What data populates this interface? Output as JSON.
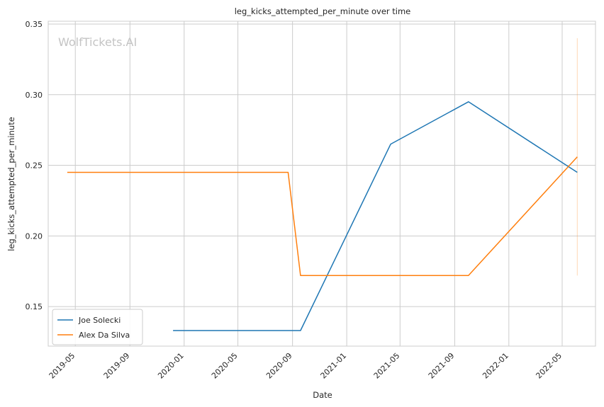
{
  "chart_data": {
    "type": "line",
    "title": "leg_kicks_attempted_per_minute over time",
    "xlabel": "Date",
    "ylabel": "leg_kicks_attempted_per_minute",
    "watermark": "WolfTickets.AI",
    "xlim": [
      "2019-03-01",
      "2022-07-15"
    ],
    "ylim": [
      0.122,
      0.352
    ],
    "x_ticks": [
      "2019-05-01",
      "2019-09-01",
      "2020-01-01",
      "2020-05-01",
      "2020-09-01",
      "2021-01-01",
      "2021-05-01",
      "2021-09-01",
      "2022-01-01",
      "2022-05-01"
    ],
    "x_tick_labels": [
      "2019-05",
      "2019-09",
      "2020-01",
      "2020-05",
      "2020-09",
      "2021-01",
      "2021-05",
      "2021-09",
      "2022-01",
      "2022-05"
    ],
    "y_ticks": [
      0.15,
      0.2,
      0.25,
      0.3,
      0.35
    ],
    "y_tick_labels": [
      "0.15",
      "0.20",
      "0.25",
      "0.30",
      "0.35"
    ],
    "grid": true,
    "legend_position": "lower-left",
    "series": [
      {
        "name": "Joe Solecki",
        "color": "#1f77b4",
        "points": [
          {
            "x": "2019-12-07",
            "y": 0.133
          },
          {
            "x": "2020-09-19",
            "y": 0.133
          },
          {
            "x": "2021-04-10",
            "y": 0.265
          },
          {
            "x": "2021-10-02",
            "y": 0.295
          },
          {
            "x": "2022-06-04",
            "y": 0.245
          }
        ]
      },
      {
        "name": "Alex Da Silva",
        "color": "#ff7f0e",
        "points": [
          {
            "x": "2019-04-13",
            "y": 0.245
          },
          {
            "x": "2020-08-22",
            "y": 0.245
          },
          {
            "x": "2020-09-19",
            "y": 0.172
          },
          {
            "x": "2021-10-02",
            "y": 0.172
          },
          {
            "x": "2022-06-04",
            "y": 0.256
          }
        ]
      }
    ],
    "error_band": {
      "x": "2022-06-04",
      "y_low": 0.172,
      "y_high": 0.34,
      "color": "#ff7f0e"
    }
  }
}
